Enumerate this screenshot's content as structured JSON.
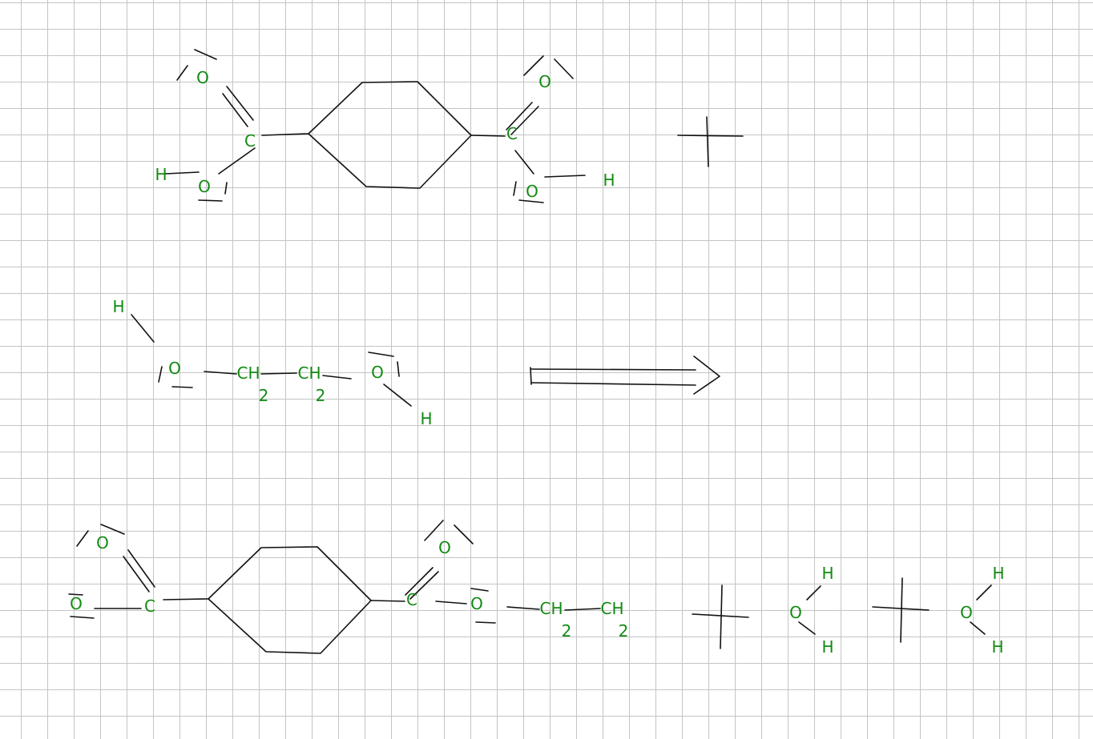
{
  "symbols": {
    "O": "O",
    "C": "C",
    "H": "H",
    "CH": "CH",
    "sub2": "2"
  },
  "colors": {
    "atom_label": "#138a13",
    "bond": "#111111",
    "grid": "#c4c4c4"
  }
}
